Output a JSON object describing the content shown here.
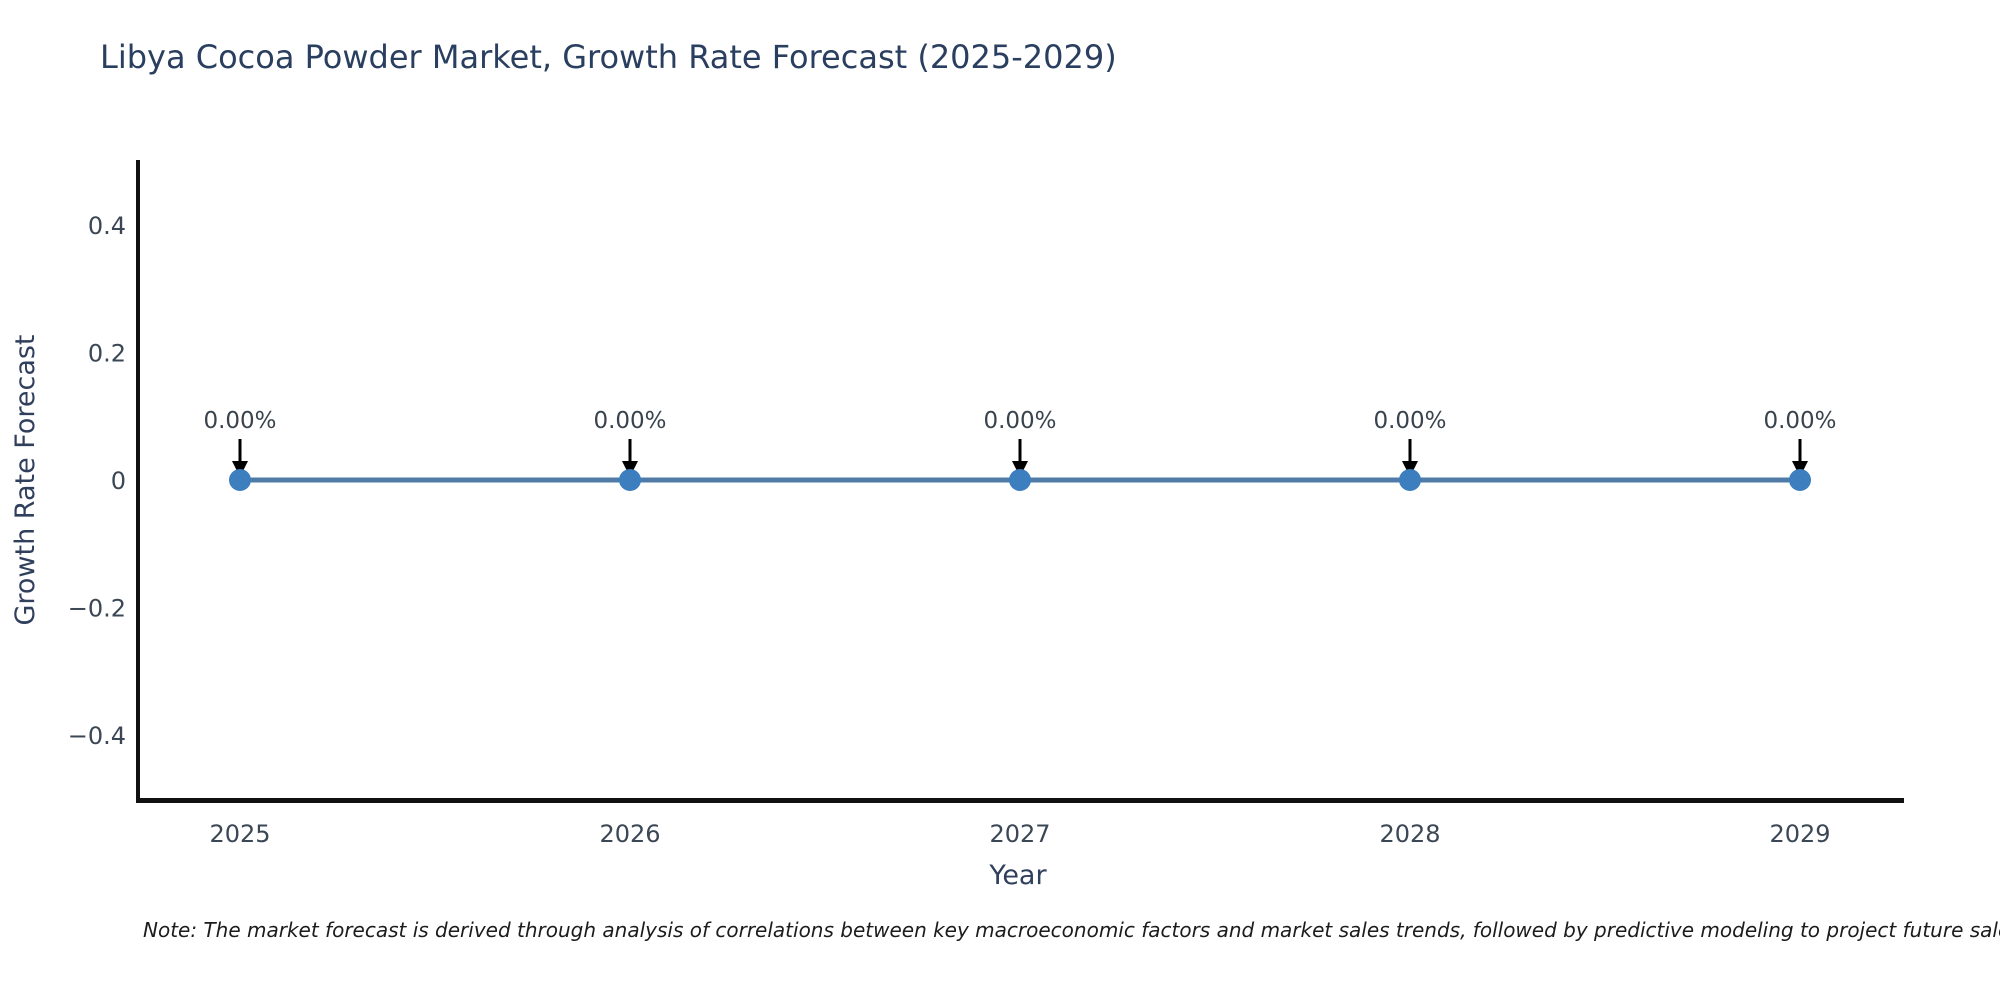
{
  "title": "Libya Cocoa Powder Market, Growth Rate Forecast (2025-2029)",
  "note": "Note: The market forecast is derived through analysis of correlations between key macroeconomic factors and market sales trends, followed by predictive modeling to project future sales.",
  "chart_data": {
    "type": "line",
    "title": "Libya Cocoa Powder Market, Growth Rate Forecast (2025-2029)",
    "xlabel": "Year",
    "ylabel": "Growth Rate Forecast",
    "categories": [
      "2025",
      "2026",
      "2027",
      "2028",
      "2029"
    ],
    "series": [
      {
        "name": "Growth Rate Forecast",
        "values": [
          0,
          0,
          0,
          0,
          0
        ],
        "point_labels": [
          "0.00%",
          "0.00%",
          "0.00%",
          "0.00%",
          "0.00%"
        ]
      }
    ],
    "yticks": [
      {
        "label": "0.4",
        "value": 0.4
      },
      {
        "label": "0.2",
        "value": 0.2
      },
      {
        "label": "0",
        "value": 0
      },
      {
        "label": "−0.2",
        "value": -0.2
      },
      {
        "label": "−0.4",
        "value": -0.4
      }
    ],
    "ylim": [
      -0.5,
      0.5
    ],
    "grid": false,
    "legend_position": "none",
    "annotation_arrows": true,
    "colors": {
      "line": "#4f7ba6",
      "marker": "#3d7ebf",
      "axis_line": "#111111",
      "tick_text": "#3b4754",
      "title_text": "#2a3f5f",
      "axis_title_text": "#2f3f5c",
      "annotation_text": "#39434e",
      "arrow": "#000000",
      "background": "#ffffff"
    }
  }
}
